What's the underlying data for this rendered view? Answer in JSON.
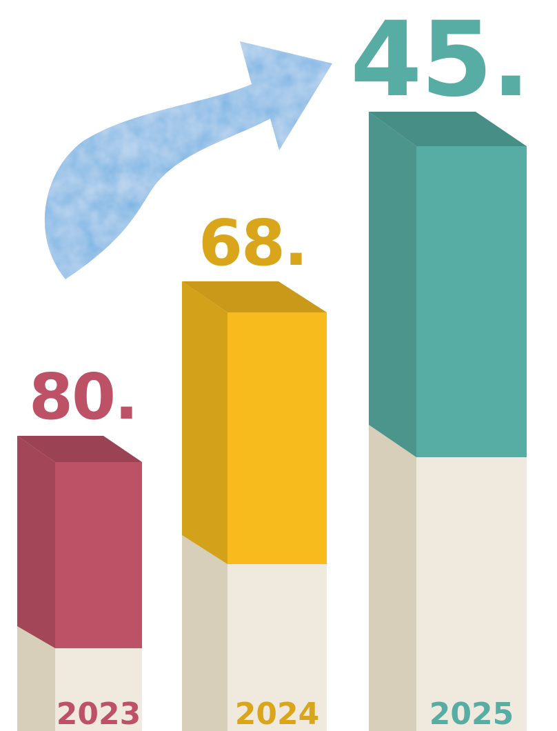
{
  "chart_data": {
    "type": "bar",
    "categories": [
      "2023",
      "2024",
      "2025"
    ],
    "values": [
      "80.",
      "68.",
      "45."
    ],
    "title": "",
    "xlabel": "",
    "ylabel": "",
    "grid": false,
    "legend": "none"
  },
  "colors": {
    "bar_2023": "#bd5166",
    "bar_2024": "#f7bb1e",
    "bar_2025": "#57ada3",
    "arrow": "#74b2e3",
    "base": "#f0e9dd"
  },
  "icons": {
    "arrow": "curved-up-right-arrow-icon"
  }
}
